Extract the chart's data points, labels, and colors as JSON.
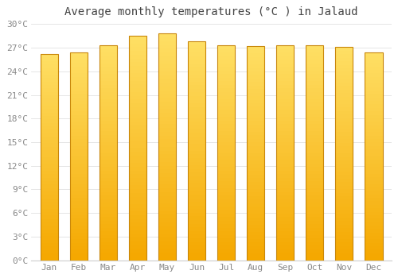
{
  "title": "Average monthly temperatures (°C ) in Jalaud",
  "months": [
    "Jan",
    "Feb",
    "Mar",
    "Apr",
    "May",
    "Jun",
    "Jul",
    "Aug",
    "Sep",
    "Oct",
    "Nov",
    "Dec"
  ],
  "values": [
    26.2,
    26.4,
    27.3,
    28.5,
    28.8,
    27.8,
    27.3,
    27.2,
    27.3,
    27.3,
    27.1,
    26.4
  ],
  "bar_color_bottom": "#F5A800",
  "bar_color_top": "#FFE066",
  "bar_edge_color": "#C8860A",
  "background_color": "#FFFFFF",
  "grid_color": "#e0e0e0",
  "ylim": [
    0,
    30
  ],
  "ytick_step": 3,
  "title_fontsize": 10,
  "tick_fontsize": 8,
  "tick_color": "#888888",
  "title_color": "#444444",
  "n_gradient_segments": 60,
  "bar_width": 0.6
}
